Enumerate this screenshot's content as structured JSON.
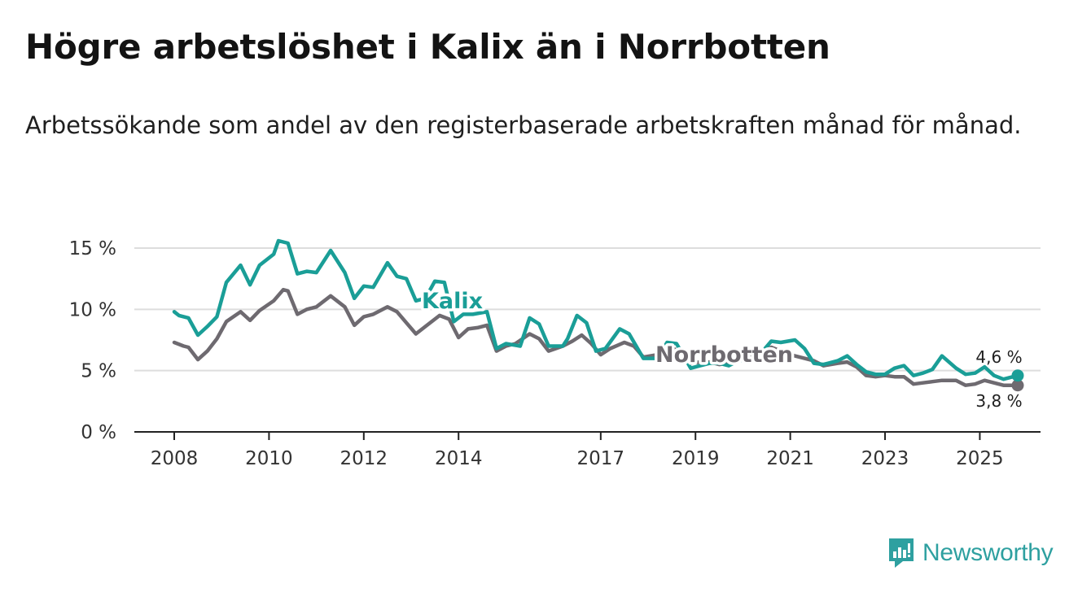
{
  "title": "Högre arbetslöshet i Kalix än i Norrbotten",
  "subtitle": "Arbetssökande som andel av den registerbaserade arbetskraften månad för månad.",
  "brand": {
    "name": "Newsworthy",
    "icon": "bar-chart-logo-icon"
  },
  "colors": {
    "kalix": "#1a9e97",
    "norrbotten": "#6e6a70",
    "grid": "#dddddd",
    "axis": "#222222"
  },
  "chart_data": {
    "type": "line",
    "title": "Högre arbetslöshet i Kalix än i Norrbotten",
    "xlabel": "",
    "ylabel": "",
    "xlim": [
      2008.0,
      2026.5
    ],
    "ylim": [
      0,
      15
    ],
    "yticks": [
      0,
      5,
      10,
      15
    ],
    "ytick_labels": [
      "0 %",
      "5 %",
      "10 %",
      "15 %"
    ],
    "xticks": [
      2008,
      2010,
      2012,
      2014,
      2017,
      2019,
      2021,
      2023,
      2025
    ],
    "xtick_labels": [
      "2008",
      "2010",
      "2012",
      "2014",
      "2017",
      "2019",
      "2021",
      "2023",
      "2025"
    ],
    "grid": true,
    "series": [
      {
        "name": "Kalix",
        "last_label": "4,6 %",
        "points": [
          [
            2008.0,
            9.8
          ],
          [
            2008.1,
            9.5
          ],
          [
            2008.3,
            9.3
          ],
          [
            2008.5,
            7.9
          ],
          [
            2008.7,
            8.6
          ],
          [
            2008.9,
            9.4
          ],
          [
            2009.1,
            12.2
          ],
          [
            2009.4,
            13.6
          ],
          [
            2009.6,
            12.0
          ],
          [
            2009.8,
            13.6
          ],
          [
            2010.1,
            14.5
          ],
          [
            2010.2,
            15.6
          ],
          [
            2010.4,
            15.4
          ],
          [
            2010.6,
            12.9
          ],
          [
            2010.8,
            13.1
          ],
          [
            2011.0,
            13.0
          ],
          [
            2011.3,
            14.8
          ],
          [
            2011.6,
            13.0
          ],
          [
            2011.8,
            10.9
          ],
          [
            2012.0,
            11.9
          ],
          [
            2012.2,
            11.8
          ],
          [
            2012.5,
            13.8
          ],
          [
            2012.7,
            12.7
          ],
          [
            2012.9,
            12.5
          ],
          [
            2013.1,
            10.7
          ],
          [
            2013.3,
            10.9
          ],
          [
            2013.5,
            12.3
          ],
          [
            2013.7,
            12.2
          ],
          [
            2013.9,
            9.0
          ],
          [
            2014.1,
            9.6
          ],
          [
            2014.3,
            9.6
          ],
          [
            2014.6,
            9.8
          ],
          [
            2014.8,
            6.8
          ],
          [
            2015.0,
            7.2
          ],
          [
            2015.3,
            7.0
          ],
          [
            2015.5,
            9.3
          ],
          [
            2015.7,
            8.8
          ],
          [
            2015.9,
            7.0
          ],
          [
            2016.2,
            7.0
          ],
          [
            2016.3,
            7.6
          ],
          [
            2016.5,
            9.5
          ],
          [
            2016.7,
            8.9
          ],
          [
            2016.9,
            6.6
          ],
          [
            2017.1,
            6.8
          ],
          [
            2017.4,
            8.4
          ],
          [
            2017.6,
            8.0
          ],
          [
            2017.9,
            6.0
          ],
          [
            2018.2,
            6.0
          ],
          [
            2018.4,
            7.3
          ],
          [
            2018.6,
            7.2
          ],
          [
            2018.9,
            5.2
          ],
          [
            2019.1,
            5.4
          ],
          [
            2019.3,
            5.6
          ],
          [
            2019.5,
            5.6
          ],
          [
            2019.7,
            5.4
          ],
          [
            2019.9,
            5.8
          ],
          [
            2020.2,
            6.0
          ],
          [
            2020.4,
            6.5
          ],
          [
            2020.6,
            7.4
          ],
          [
            2020.8,
            7.3
          ],
          [
            2021.1,
            7.5
          ],
          [
            2021.3,
            6.8
          ],
          [
            2021.5,
            5.6
          ],
          [
            2021.7,
            5.5
          ],
          [
            2022.0,
            5.8
          ],
          [
            2022.2,
            6.2
          ],
          [
            2022.4,
            5.5
          ],
          [
            2022.6,
            4.9
          ],
          [
            2022.8,
            4.7
          ],
          [
            2023.0,
            4.7
          ],
          [
            2023.2,
            5.2
          ],
          [
            2023.4,
            5.4
          ],
          [
            2023.6,
            4.6
          ],
          [
            2023.8,
            4.8
          ],
          [
            2024.0,
            5.1
          ],
          [
            2024.2,
            6.2
          ],
          [
            2024.5,
            5.2
          ],
          [
            2024.7,
            4.7
          ],
          [
            2024.9,
            4.8
          ],
          [
            2025.1,
            5.3
          ],
          [
            2025.3,
            4.6
          ],
          [
            2025.5,
            4.3
          ],
          [
            2025.8,
            4.6
          ]
        ]
      },
      {
        "name": "Norrbotten",
        "last_label": "3,8 %",
        "points": [
          [
            2008.0,
            7.3
          ],
          [
            2008.2,
            7.0
          ],
          [
            2008.3,
            6.9
          ],
          [
            2008.5,
            5.9
          ],
          [
            2008.7,
            6.6
          ],
          [
            2008.9,
            7.6
          ],
          [
            2009.1,
            9.0
          ],
          [
            2009.4,
            9.8
          ],
          [
            2009.6,
            9.1
          ],
          [
            2009.8,
            9.9
          ],
          [
            2010.1,
            10.7
          ],
          [
            2010.3,
            11.6
          ],
          [
            2010.4,
            11.5
          ],
          [
            2010.6,
            9.6
          ],
          [
            2010.8,
            10.0
          ],
          [
            2011.0,
            10.2
          ],
          [
            2011.3,
            11.1
          ],
          [
            2011.6,
            10.2
          ],
          [
            2011.8,
            8.7
          ],
          [
            2012.0,
            9.4
          ],
          [
            2012.2,
            9.6
          ],
          [
            2012.5,
            10.2
          ],
          [
            2012.7,
            9.8
          ],
          [
            2012.9,
            8.9
          ],
          [
            2013.1,
            8.0
          ],
          [
            2013.3,
            8.6
          ],
          [
            2013.6,
            9.5
          ],
          [
            2013.8,
            9.2
          ],
          [
            2014.0,
            7.7
          ],
          [
            2014.2,
            8.4
          ],
          [
            2014.4,
            8.5
          ],
          [
            2014.6,
            8.7
          ],
          [
            2014.8,
            6.6
          ],
          [
            2015.0,
            7.0
          ],
          [
            2015.2,
            7.2
          ],
          [
            2015.5,
            8.0
          ],
          [
            2015.7,
            7.6
          ],
          [
            2015.9,
            6.6
          ],
          [
            2016.2,
            7.0
          ],
          [
            2016.4,
            7.4
          ],
          [
            2016.6,
            7.9
          ],
          [
            2016.8,
            7.2
          ],
          [
            2017.0,
            6.3
          ],
          [
            2017.2,
            6.8
          ],
          [
            2017.5,
            7.3
          ],
          [
            2017.7,
            7.0
          ],
          [
            2017.9,
            6.1
          ],
          [
            2018.2,
            6.3
          ],
          [
            2018.4,
            6.9
          ],
          [
            2018.6,
            6.7
          ],
          [
            2018.9,
            5.6
          ],
          [
            2019.1,
            5.7
          ],
          [
            2019.3,
            5.7
          ],
          [
            2019.5,
            5.5
          ],
          [
            2019.7,
            5.6
          ],
          [
            2019.9,
            5.8
          ],
          [
            2020.2,
            6.2
          ],
          [
            2020.4,
            6.6
          ],
          [
            2020.6,
            6.9
          ],
          [
            2020.8,
            6.6
          ],
          [
            2021.1,
            6.2
          ],
          [
            2021.3,
            6.0
          ],
          [
            2021.5,
            5.8
          ],
          [
            2021.7,
            5.4
          ],
          [
            2022.0,
            5.6
          ],
          [
            2022.2,
            5.7
          ],
          [
            2022.4,
            5.3
          ],
          [
            2022.6,
            4.6
          ],
          [
            2022.8,
            4.5
          ],
          [
            2023.0,
            4.6
          ],
          [
            2023.2,
            4.5
          ],
          [
            2023.4,
            4.5
          ],
          [
            2023.6,
            3.9
          ],
          [
            2023.8,
            4.0
          ],
          [
            2024.0,
            4.1
          ],
          [
            2024.2,
            4.2
          ],
          [
            2024.5,
            4.2
          ],
          [
            2024.7,
            3.8
          ],
          [
            2024.9,
            3.9
          ],
          [
            2025.1,
            4.2
          ],
          [
            2025.3,
            4.0
          ],
          [
            2025.5,
            3.8
          ],
          [
            2025.8,
            3.8
          ]
        ]
      }
    ]
  }
}
